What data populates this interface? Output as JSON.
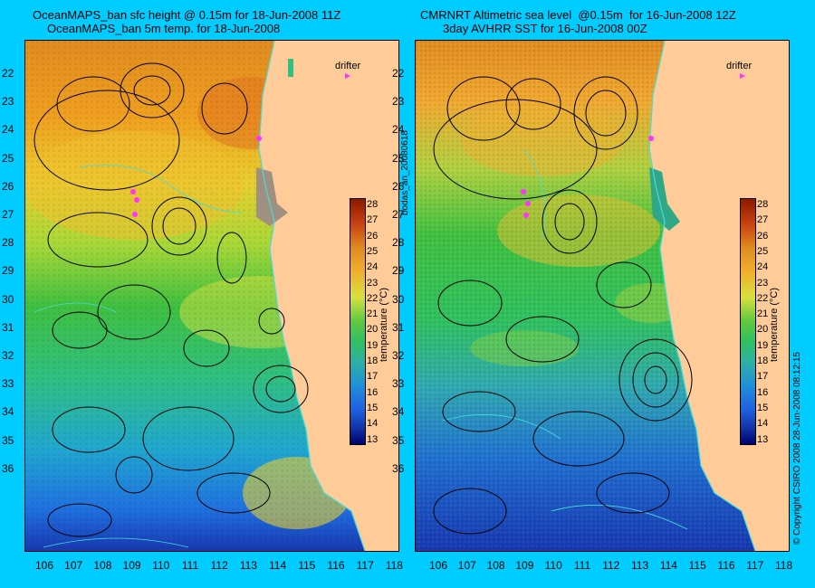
{
  "left": {
    "title_line1": "OceanMAPS_ban sfc height @ 0.15m for 18-Jun-2008 11Z",
    "title_line2": "OceanMAPS_ban 5m temp. for 18-Jun-2008"
  },
  "right": {
    "title_line1": "CMRNRT Altimetric sea level  @0.15m  for 16-Jun-2008 12Z",
    "title_line2": "3day AVHRR SST for 16-Jun-2008 00Z"
  },
  "latitudes": [
    "22",
    "23",
    "24",
    "25",
    "26",
    "27",
    "28",
    "29",
    "30",
    "31",
    "32",
    "33",
    "34",
    "35",
    "36"
  ],
  "longitudes": [
    "106",
    "107",
    "108",
    "109",
    "110",
    "111",
    "112",
    "113",
    "114",
    "115",
    "116",
    "117",
    "118"
  ],
  "colorbar": {
    "title": "temperature (°C)",
    "ticks": [
      "28",
      "27",
      "26",
      "25",
      "24",
      "23",
      "22",
      "21",
      "20",
      "19",
      "18",
      "17",
      "16",
      "15",
      "14",
      "13"
    ],
    "range": [
      13,
      28
    ]
  },
  "drifter_label": "drifter",
  "middle_id": "bodas_an_20080618",
  "right_credit": "© Copyright CSIRO 2008   28-Jun-2008 08:12:15",
  "colors": {
    "background": "#00ccff",
    "land": "#ffcc99",
    "drifter": "#ff33ff",
    "contour": "#000000",
    "coastline": "#44dddd"
  }
}
